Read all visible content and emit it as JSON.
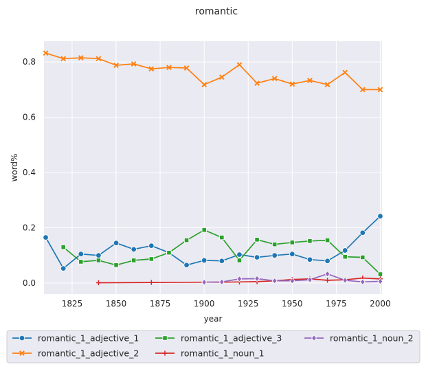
{
  "chart_data": {
    "type": "line",
    "title": "romantic",
    "xlabel": "year",
    "ylabel": "word%",
    "xlim": [
      1809,
      2001
    ],
    "ylim": [
      -0.04,
      0.875
    ],
    "xticks": [
      1825,
      1850,
      1875,
      1900,
      1925,
      1950,
      1975,
      2000
    ],
    "yticks": [
      0.0,
      0.2,
      0.4,
      0.6,
      0.8
    ],
    "grid": true,
    "legend_position": "bottom",
    "series": [
      {
        "name": "romantic_1_adjective_1",
        "color": "#1f77b4",
        "marker": "circle",
        "x": [
          1810,
          1820,
          1830,
          1840,
          1850,
          1860,
          1870,
          1880,
          1890,
          1900,
          1910,
          1920,
          1930,
          1940,
          1950,
          1960,
          1970,
          1980,
          1990,
          2000
        ],
        "y": [
          0.165,
          0.053,
          0.105,
          0.1,
          0.145,
          0.122,
          0.135,
          0.11,
          0.065,
          0.082,
          0.08,
          0.103,
          0.093,
          0.1,
          0.105,
          0.085,
          0.08,
          0.118,
          0.182,
          0.242
        ]
      },
      {
        "name": "romantic_1_adjective_2",
        "color": "#ff7f0e",
        "marker": "x",
        "x": [
          1810,
          1820,
          1830,
          1840,
          1850,
          1860,
          1870,
          1880,
          1890,
          1900,
          1910,
          1920,
          1930,
          1940,
          1950,
          1960,
          1970,
          1980,
          1990,
          2000
        ],
        "y": [
          0.832,
          0.812,
          0.815,
          0.812,
          0.788,
          0.793,
          0.775,
          0.78,
          0.778,
          0.718,
          0.745,
          0.79,
          0.723,
          0.74,
          0.72,
          0.733,
          0.718,
          0.762,
          0.7,
          0.7
        ]
      },
      {
        "name": "romantic_1_adjective_3",
        "color": "#2ca02c",
        "marker": "square",
        "x": [
          1820,
          1830,
          1840,
          1850,
          1860,
          1870,
          1880,
          1890,
          1900,
          1910,
          1920,
          1930,
          1940,
          1950,
          1960,
          1970,
          1980,
          1990,
          2000
        ],
        "y": [
          0.13,
          0.077,
          0.082,
          0.065,
          0.082,
          0.087,
          0.11,
          0.155,
          0.192,
          0.165,
          0.082,
          0.157,
          0.14,
          0.147,
          0.152,
          0.155,
          0.095,
          0.093,
          0.032
        ]
      },
      {
        "name": "romantic_1_noun_1",
        "color": "#d62728",
        "marker": "plus",
        "x": [
          1840,
          1870,
          1900,
          1910,
          1920,
          1930,
          1940,
          1950,
          1960,
          1970,
          1980,
          1990,
          2000
        ],
        "y": [
          0.001,
          0.002,
          0.003,
          0.003,
          0.004,
          0.005,
          0.008,
          0.013,
          0.015,
          0.01,
          0.012,
          0.018,
          0.015
        ]
      },
      {
        "name": "romantic_1_noun_2",
        "color": "#9467bd",
        "marker": "diamond",
        "x": [
          1900,
          1910,
          1920,
          1930,
          1940,
          1950,
          1960,
          1970,
          1980,
          1990,
          2000
        ],
        "y": [
          0.003,
          0.004,
          0.015,
          0.016,
          0.008,
          0.008,
          0.012,
          0.033,
          0.01,
          0.004,
          0.006
        ]
      }
    ]
  }
}
